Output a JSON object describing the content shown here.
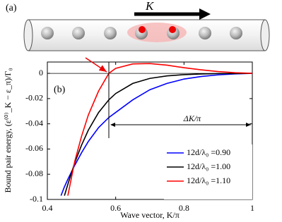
{
  "chart_data": {
    "type": "line",
    "panel_a_label": "(a)",
    "panel_b_label": "(b)",
    "momentum_label": "K",
    "delta_label": "ΔK/π",
    "x_label": "Wave vector, K/π",
    "y_label": "Bound pair energy, (ε⁽⁰⁾_K − ε_π)/Γ₀",
    "x": [
      0.44,
      0.45,
      0.46,
      0.48,
      0.5,
      0.52,
      0.55,
      0.58,
      0.6,
      0.65,
      0.7,
      0.75,
      0.8,
      0.85,
      0.9,
      0.95,
      1.0
    ],
    "series": [
      {
        "name": "12d/λ₀ =0.90",
        "color": "#0000ff",
        "values": [
          -0.097,
          -0.09,
          -0.084,
          -0.073,
          -0.063,
          -0.054,
          -0.043,
          -0.035,
          -0.031,
          -0.021,
          -0.013,
          -0.008,
          -0.0045,
          -0.0025,
          -0.0012,
          -0.0004,
          0
        ]
      },
      {
        "name": "12d/λ₀ =1.00",
        "color": "#000000",
        "values": [
          null,
          -0.097,
          -0.088,
          -0.071,
          -0.057,
          -0.045,
          -0.031,
          -0.021,
          -0.016,
          -0.008,
          -0.004,
          -0.002,
          -0.001,
          -0.0005,
          -0.0002,
          -0.0001,
          0
        ]
      },
      {
        "name": "12d/λ₀ =1.10",
        "color": "#ff0000",
        "values": [
          null,
          null,
          -0.097,
          -0.07,
          -0.05,
          -0.033,
          -0.014,
          0,
          0.004,
          0.0075,
          0.0078,
          0.0065,
          0.0045,
          0.0028,
          0.0014,
          0.0005,
          0
        ]
      }
    ],
    "xlim": [
      0.4,
      1
    ],
    "xticks": [
      0.4,
      0.6,
      0.8,
      1
    ],
    "ylim": [
      -0.1,
      0.009
    ],
    "yticks": [
      0,
      -0.02,
      -0.04,
      -0.06,
      -0.08,
      -0.1
    ],
    "zero_line": true,
    "legend": "lower right"
  }
}
